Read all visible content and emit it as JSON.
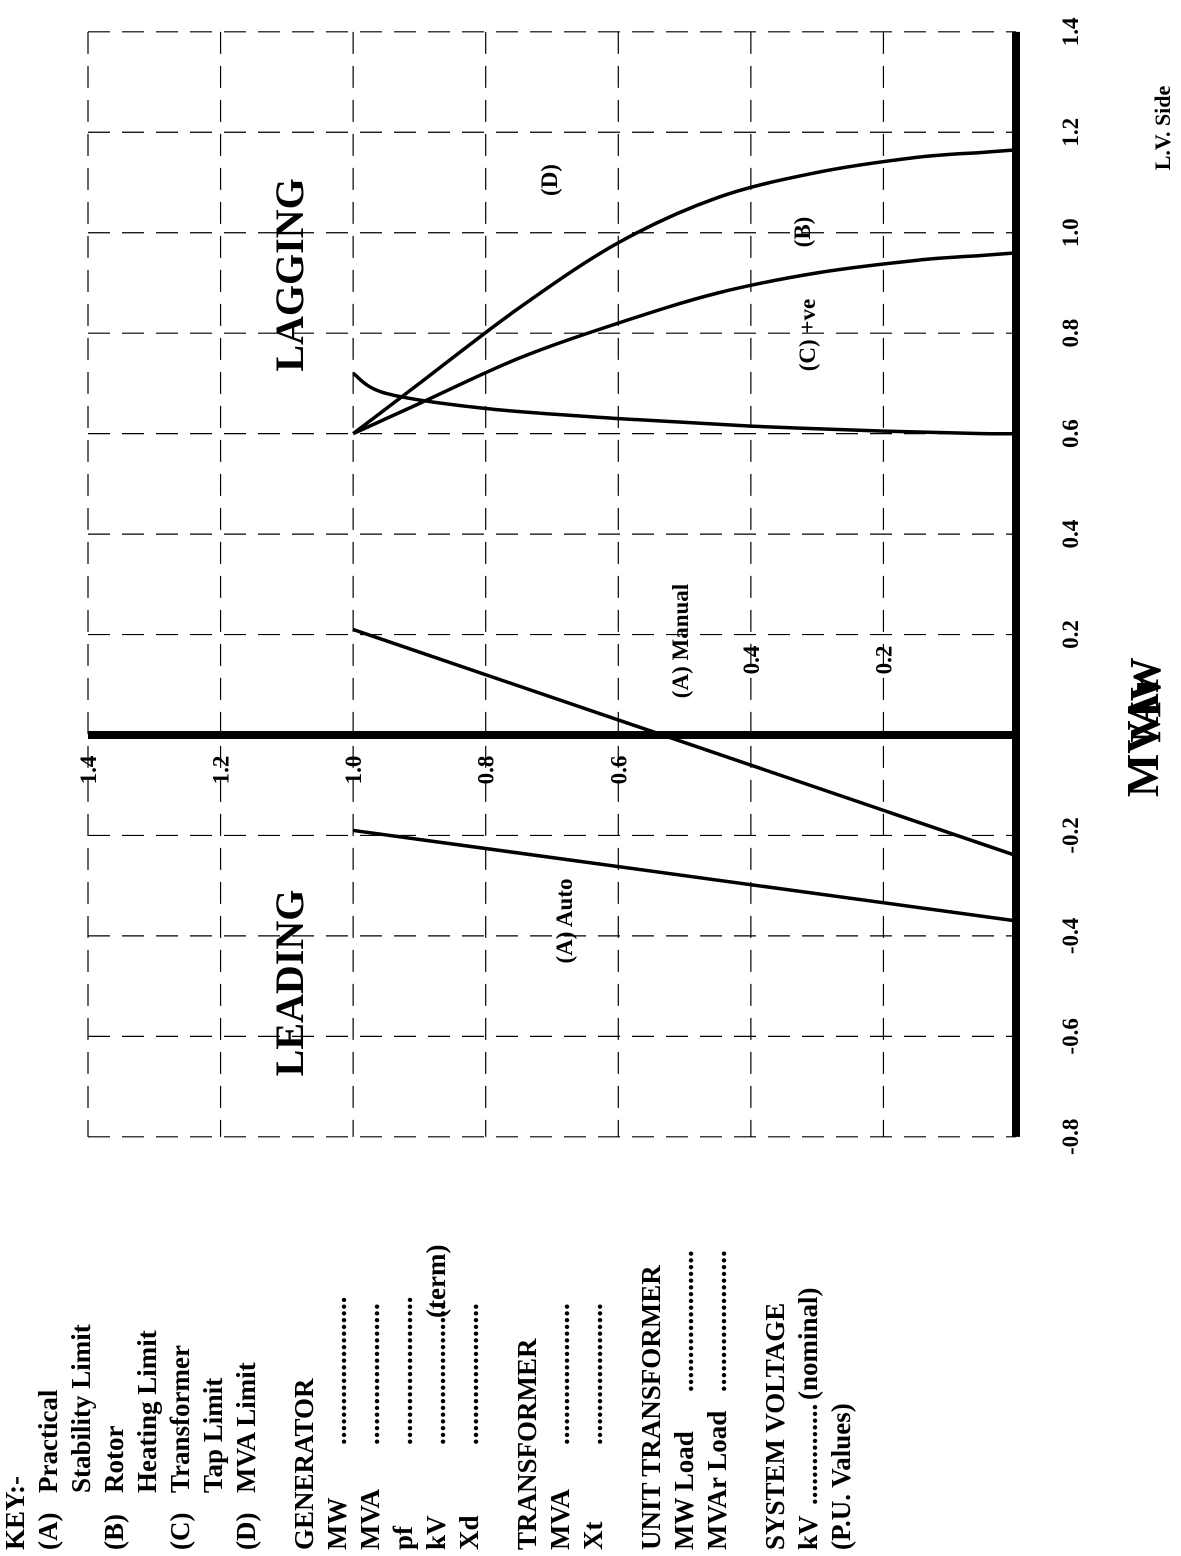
{
  "chart_data": {
    "type": "line",
    "title": "",
    "xlabel": "MVAr",
    "ylabel": "MW",
    "xlim": [
      -0.8,
      1.4
    ],
    "ylim": [
      0,
      1.4
    ],
    "x_ticks": [
      -0.8,
      -0.6,
      -0.4,
      -0.2,
      0.2,
      0.4,
      0.6,
      0.8,
      1.0,
      1.2,
      1.4
    ],
    "x_tick_labels": [
      "-0.8",
      "-0.6",
      "-0.4",
      "-0.2",
      "0.2",
      "0.4",
      "0.6",
      "0.8",
      "1.0",
      "1.2",
      "1.4"
    ],
    "y_ticks": [
      1.4,
      1.2,
      1.0,
      0.8,
      0.6,
      0.4,
      0.2
    ],
    "y_tick_labels": [
      "1.4",
      "1.2",
      "1.0",
      "0.8",
      "0.6",
      "0.4",
      "0.2"
    ],
    "grid": true,
    "region_labels": {
      "leading": "LEADING",
      "lagging": "LAGGING"
    },
    "side_note": "L.V. Side",
    "series": [
      {
        "name": "(A) Auto",
        "x": [
          -0.19,
          -0.37
        ],
        "y": [
          1.0,
          0.0
        ]
      },
      {
        "name": "(A) Manual",
        "x": [
          0.21,
          -0.24
        ],
        "y": [
          1.0,
          0.0
        ]
      },
      {
        "name": "(B)",
        "x": [
          0.6,
          0.66,
          0.75,
          0.82,
          0.88,
          0.92,
          0.945,
          0.955,
          0.96
        ],
        "y": [
          1.0,
          0.9,
          0.75,
          0.6,
          0.45,
          0.3,
          0.15,
          0.05,
          0.0
        ]
      },
      {
        "name": "(C) +ve",
        "x": [
          0.72,
          0.68,
          0.65,
          0.63,
          0.615,
          0.605,
          0.6,
          0.6
        ],
        "y": [
          1.0,
          0.95,
          0.8,
          0.6,
          0.4,
          0.2,
          0.05,
          0.0
        ]
      },
      {
        "name": "(D)",
        "x": [
          0.6,
          0.7,
          0.85,
          0.98,
          1.07,
          1.12,
          1.15,
          1.16,
          1.165
        ],
        "y": [
          1.0,
          0.9,
          0.75,
          0.6,
          0.45,
          0.3,
          0.15,
          0.05,
          0.0
        ]
      }
    ]
  },
  "key": {
    "heading": "KEY:-",
    "items": [
      {
        "letter": "(A)",
        "lines": [
          "Practical",
          "Stability Limit"
        ]
      },
      {
        "letter": "(B)",
        "lines": [
          "Rotor",
          "Heating Limit"
        ]
      },
      {
        "letter": "(C)",
        "lines": [
          "Transformer",
          "Tap Limit"
        ]
      },
      {
        "letter": "(D)",
        "lines": [
          "MVA Limit"
        ]
      }
    ]
  },
  "form": {
    "generator": {
      "heading": "GENERATOR",
      "rows": [
        {
          "label": "MW",
          "blank": "......................",
          "suffix": ""
        },
        {
          "label": "MVA",
          "blank": ".....................",
          "suffix": ""
        },
        {
          "label": "pf",
          "blank": "......................",
          "suffix": ""
        },
        {
          "label": "kV",
          "blank": ".....................",
          "suffix": "(term)"
        },
        {
          "label": "Xd",
          "blank": ".....................",
          "suffix": ""
        }
      ]
    },
    "transformer": {
      "heading": "TRANSFORMER",
      "rows": [
        {
          "label": "MVA",
          "blank": ".....................",
          "suffix": ""
        },
        {
          "label": "Xt",
          "blank": ".....................",
          "suffix": ""
        }
      ]
    },
    "unit_transformer": {
      "heading": "UNIT TRANSFORMER",
      "rows": [
        {
          "label": "MW Load",
          "blank": ".....................",
          "suffix": ""
        },
        {
          "label": "MVAr Load",
          "blank": ".....................",
          "suffix": ""
        }
      ]
    },
    "system_voltage": {
      "heading": "SYSTEM VOLTAGE",
      "rows": [
        {
          "label": "kV",
          "blank": "...............",
          "suffix": "(nominal)"
        }
      ],
      "note": "(P.U. Values)"
    }
  }
}
